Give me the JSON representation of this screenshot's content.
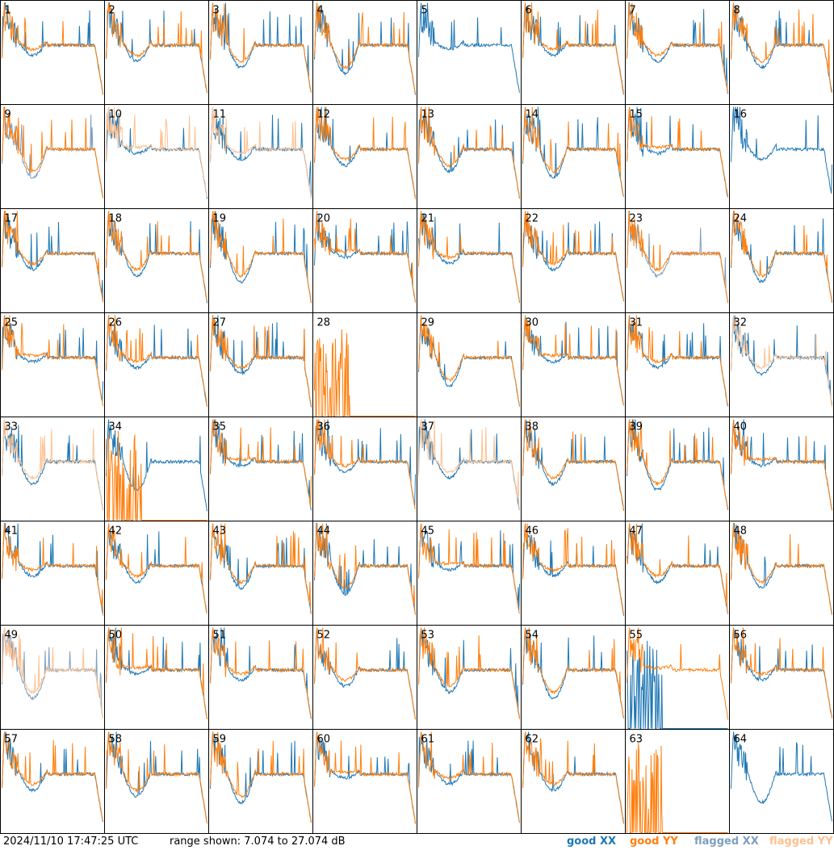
{
  "chart_data": {
    "type": "line",
    "panel_labels": [
      "1",
      "2",
      "3",
      "4",
      "5",
      "6",
      "7",
      "8",
      "9",
      "10",
      "11",
      "12",
      "13",
      "14",
      "15",
      "16",
      "17",
      "18",
      "19",
      "20",
      "21",
      "22",
      "23",
      "24",
      "25",
      "26",
      "27",
      "28",
      "29",
      "30",
      "31",
      "32",
      "33",
      "34",
      "35",
      "36",
      "37",
      "38",
      "39",
      "40",
      "41",
      "42",
      "43",
      "44",
      "45",
      "46",
      "47",
      "48",
      "49",
      "50",
      "51",
      "52",
      "53",
      "54",
      "55",
      "56",
      "57",
      "58",
      "59",
      "60",
      "61",
      "62",
      "63",
      "64"
    ],
    "grid": {
      "rows": 8,
      "cols": 8
    },
    "ylim_db": [
      7.074,
      27.074
    ],
    "series": [
      {
        "name": "good XX",
        "color": "#1f77b4"
      },
      {
        "name": "good YY",
        "color": "#ff7f0e"
      },
      {
        "name": "flagged XX",
        "color": "#7f9fbf"
      },
      {
        "name": "flagged YY",
        "color": "#ffc090"
      }
    ],
    "panel_states": {
      "xx_flagged": [
        9,
        23,
        49
      ],
      "yy_flagged": [
        10,
        11,
        32,
        33,
        37,
        49
      ],
      "xx_missing": [
        28,
        63
      ],
      "yy_missing": [
        5,
        16,
        64
      ],
      "xx_spiky": [
        55
      ],
      "yy_spiky": [
        28,
        34,
        63
      ]
    }
  },
  "footer": {
    "timestamp": "2024/11/10 17:47:25 UTC",
    "range": "range shown: 7.074 to 27.074 dB"
  },
  "legend": [
    {
      "label": "good XX",
      "color": "#1f77b4"
    },
    {
      "label": "good YY",
      "color": "#ff7f0e"
    },
    {
      "label": "flagged XX",
      "color": "#7f9fbf"
    },
    {
      "label": "flagged YY",
      "color": "#ffc090"
    }
  ]
}
